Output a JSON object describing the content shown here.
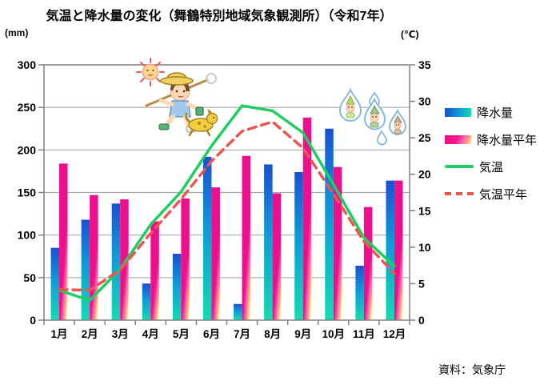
{
  "title": "気温と降水量の変化（舞鶴特別地域気象観測所）（令和7年）",
  "source": "資料：気象庁",
  "colors": {
    "bar_blue_top": "#1b50d0",
    "bar_blue_mid": "#0d9bd8",
    "bar_blue_bottom": "#12dcb0",
    "bar_pink_top": "#ee0f8c",
    "bar_pink_mid": "#fb6fb2",
    "bar_pink_warm": "#ffb36a",
    "bar_pink_bottom": "#fff3cf",
    "line_green": "#1fce63",
    "line_red": "#ec564e",
    "grid": "#a9a9a9",
    "axis": "#808080",
    "text": "#000000"
  },
  "decorations": [
    {
      "name": "sun-boy-dog-clipart"
    },
    {
      "name": "raindrop-characters-clipart"
    }
  ],
  "chart_data": {
    "type": "combo-bar-line",
    "categories": [
      "1月",
      "2月",
      "3月",
      "4月",
      "5月",
      "6月",
      "7月",
      "8月",
      "9月",
      "10月",
      "11月",
      "12月"
    ],
    "series": [
      {
        "name": "降水量",
        "type": "bar",
        "axis": "left",
        "values": [
          85,
          118,
          137,
          43,
          78,
          192,
          19,
          183,
          174,
          225,
          64,
          164
        ]
      },
      {
        "name": "降水量平年",
        "type": "bar",
        "axis": "left",
        "values": [
          184,
          147,
          142,
          116,
          143,
          156,
          193,
          149,
          238,
          180,
          133,
          164
        ]
      },
      {
        "name": "気温",
        "type": "line",
        "style": "solid",
        "axis": "right",
        "values": [
          4.1,
          2.7,
          7.0,
          13.1,
          17.6,
          23.9,
          29.4,
          28.7,
          25.7,
          18.6,
          11.3,
          7.4
        ]
      },
      {
        "name": "気温平年",
        "type": "line",
        "style": "dashed",
        "axis": "right",
        "values": [
          4.2,
          4.1,
          6.9,
          11.9,
          16.6,
          21.8,
          25.9,
          27.2,
          23.6,
          17.3,
          10.8,
          6.4
        ]
      }
    ],
    "left_axis": {
      "unit": "(mm)",
      "min": 0,
      "max": 300,
      "step": 50,
      "ticks": [
        300,
        250,
        200,
        150,
        100,
        50,
        0
      ]
    },
    "right_axis": {
      "unit": "(℃)",
      "min": 0,
      "max": 35,
      "step": 5,
      "ticks": [
        35,
        30,
        25,
        20,
        15,
        10,
        5,
        0
      ]
    },
    "grid": true,
    "legend_position": "right"
  }
}
